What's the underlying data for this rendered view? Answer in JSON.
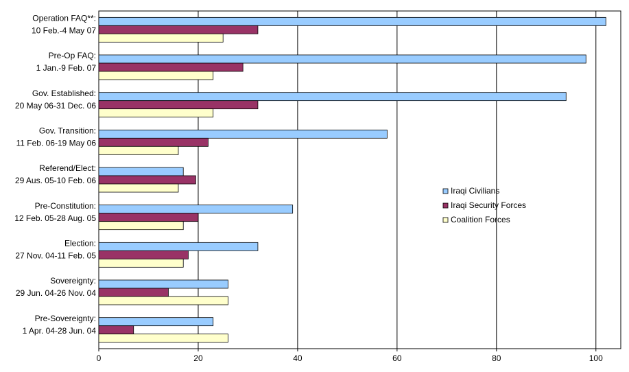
{
  "chart_data": {
    "type": "hbar",
    "categories": [
      [
        "Operation FAQ**:",
        "10 Feb.-4 May 07"
      ],
      [
        "Pre-Op FAQ:",
        "1 Jan.-9 Feb. 07"
      ],
      [
        "Gov. Established:",
        "20 May 06-31 Dec. 06"
      ],
      [
        "Gov. Transition:",
        "11 Feb. 06-19 May 06"
      ],
      [
        "Referend/Elect:",
        "29 Aus. 05-10 Feb. 06"
      ],
      [
        "Pre-Constitution:",
        "12 Feb. 05-28 Aug. 05"
      ],
      [
        "Election:",
        "27 Nov. 04-11 Feb. 05"
      ],
      [
        "Sovereignty:",
        "29 Jun. 04-26 Nov. 04"
      ],
      [
        "Pre-Sovereignty:",
        "1 Apr. 04-28 Jun. 04"
      ]
    ],
    "series": [
      {
        "name": "Iraqi Civilians",
        "color": "#99ccff",
        "values": [
          102,
          98,
          94,
          58,
          17,
          39,
          32,
          26,
          23
        ]
      },
      {
        "name": "Iraqi Security Forces",
        "color": "#993366",
        "values": [
          32,
          29,
          32,
          22,
          19.5,
          20,
          18,
          14,
          7
        ]
      },
      {
        "name": "Coalition Forces",
        "color": "#ffffcc",
        "values": [
          25,
          23,
          23,
          16,
          16,
          17,
          17,
          26,
          26
        ]
      }
    ],
    "xlim": [
      0,
      105
    ],
    "xticks": [
      0,
      20,
      40,
      60,
      80,
      100
    ],
    "grid": true,
    "legend": "right"
  }
}
